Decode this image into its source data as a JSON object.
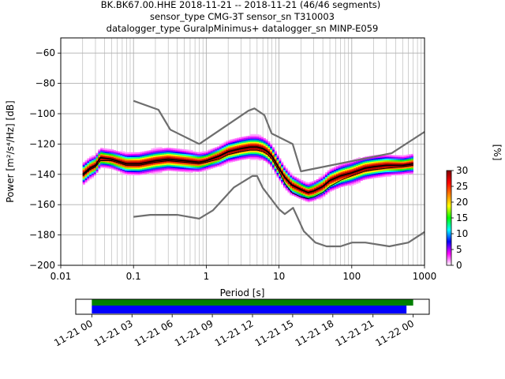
{
  "title_lines": [
    "BK.BK67.00.HHE   2018-11-21 -- 2018-11-21  (46/46 segments)",
    "sensor_type CMG-3T sensor_sn T310003",
    "datalogger_type GuralpMinimus+ datalogger_sn MINP-E059"
  ],
  "colors": {
    "noise_model": "#6e6e6e",
    "mean": "#000000",
    "grid": "#b0b0b0",
    "coverage_green": "#008000",
    "coverage_blue": "#0000ff",
    "colormap": [
      "#ffffff",
      "#ff00ff",
      "#0000ff",
      "#00ffff",
      "#00ff00",
      "#ffff00",
      "#ff8000",
      "#ff0000",
      "#800000"
    ]
  },
  "chart_data": [
    {
      "type": "heatmap",
      "subtype": "probabilistic power spectral density",
      "xlabel": "Period [s]",
      "ylabel": "Power [m²/s⁴/Hz] [dB]",
      "x_scale": "log",
      "xlim": [
        0.01,
        1000
      ],
      "ylim": [
        -200,
        -50
      ],
      "x_ticks": [
        0.01,
        0.1,
        1,
        10,
        100,
        1000
      ],
      "x_tick_labels": [
        "0.01",
        "0.1",
        "1",
        "10",
        "100",
        "1000"
      ],
      "y_ticks": [
        -60,
        -80,
        -100,
        -120,
        -140,
        -160,
        -180,
        -200
      ],
      "y_tick_labels": [
        "−60",
        "−80",
        "−100",
        "−120",
        "−140",
        "−160",
        "−180",
        "−200"
      ],
      "grid": true,
      "colorbar": {
        "label": "[%]",
        "range": [
          0,
          30
        ],
        "ticks": [
          0,
          5,
          10,
          15,
          20,
          25,
          30
        ]
      },
      "series": [
        {
          "name": "",
          "role": "high noise model",
          "x": [
            0.1,
            0.22,
            0.32,
            0.8,
            3.8,
            4.6,
            6.3,
            7.9,
            15.4,
            20,
            354.8,
            1000
          ],
          "y": [
            -91.5,
            -97.4,
            -110.5,
            -120,
            -98,
            -96.5,
            -101,
            -113,
            -120,
            -138,
            -126,
            -112
          ]
        },
        {
          "name": "",
          "role": "low noise model",
          "x": [
            0.1,
            0.17,
            0.4,
            0.8,
            1.24,
            2.4,
            4.3,
            5,
            6,
            10,
            12,
            15.6,
            21.9,
            31.6,
            45,
            70,
            101,
            154,
            328,
            600,
            1000
          ],
          "y": [
            -168,
            -166.7,
            -166.7,
            -169.2,
            -163.7,
            -148.6,
            -141.1,
            -141.1,
            -149,
            -163,
            -166.2,
            -162.1,
            -177.5,
            -185,
            -187.5,
            -187.5,
            -185,
            -185,
            -187.5,
            -185,
            -178
          ]
        },
        {
          "name": "",
          "role": "mean",
          "x": [
            0.02,
            0.025,
            0.03,
            0.035,
            0.05,
            0.08,
            0.12,
            0.2,
            0.3,
            0.5,
            0.8,
            1,
            1.5,
            2,
            3,
            4,
            5,
            6,
            7,
            8,
            10,
            12,
            15,
            20,
            25,
            30,
            40,
            50,
            70,
            100,
            150,
            200,
            300,
            500,
            700
          ],
          "y": [
            -140,
            -136,
            -134,
            -129,
            -130,
            -133,
            -133,
            -131,
            -130,
            -131,
            -132,
            -131,
            -128,
            -125,
            -123,
            -122,
            -122,
            -123,
            -125,
            -128,
            -136,
            -142,
            -147,
            -150,
            -152,
            -151,
            -148,
            -144,
            -141,
            -139,
            -136,
            -135,
            -134,
            -134,
            -133
          ]
        },
        {
          "name": "",
          "role": "mode",
          "x": [
            0.02,
            0.025,
            0.03,
            0.035,
            0.05,
            0.08,
            0.12,
            0.2,
            0.3,
            0.5,
            0.8,
            1,
            1.5,
            2,
            3,
            4,
            5,
            6,
            7,
            8,
            10,
            12,
            15,
            20,
            25,
            30,
            40,
            50,
            70,
            100,
            150,
            200,
            300,
            500,
            700
          ],
          "y": [
            -141,
            -137,
            -135,
            -131,
            -131,
            -134,
            -134,
            -132,
            -131,
            -132,
            -133,
            -132,
            -130,
            -127,
            -125,
            -124,
            -124,
            -125,
            -127,
            -130,
            -138,
            -146,
            -152,
            -155,
            -156,
            -155,
            -152,
            -148,
            -144,
            -141,
            -138,
            -137,
            -136,
            -135,
            -134
          ]
        }
      ]
    },
    {
      "type": "bar",
      "subtype": "data coverage timeline",
      "x_tick_labels": [
        "11-21 00",
        "11-21 03",
        "11-21 06",
        "11-21 09",
        "11-21 12",
        "11-21 15",
        "11-21 18",
        "11-21 21",
        "11-22 00"
      ],
      "x_range_hours": [
        -1.2,
        25.2
      ],
      "series": [
        {
          "name": "",
          "role": "data available",
          "start_hour": 0,
          "end_hour": 24
        },
        {
          "name": "",
          "role": "psd segments",
          "start_hour": 0,
          "end_hour": 23.5
        }
      ]
    }
  ]
}
